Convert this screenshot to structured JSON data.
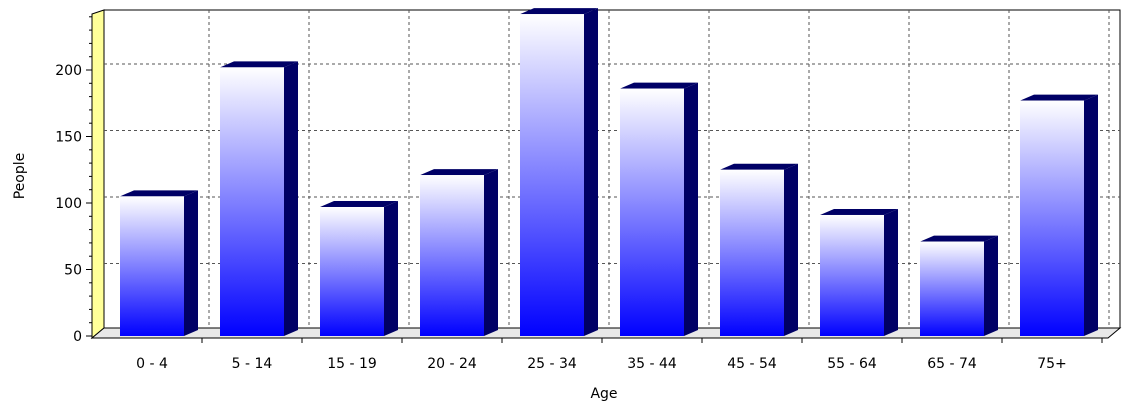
{
  "chart_data": {
    "type": "bar",
    "title": "",
    "xlabel": "Age",
    "ylabel": "People",
    "categories": [
      "0 - 4",
      "5 - 14",
      "15 - 19",
      "20 - 24",
      "25 - 34",
      "35 - 44",
      "45 - 54",
      "55 - 64",
      "65 - 74",
      "75+"
    ],
    "values": [
      105,
      202,
      97,
      121,
      242,
      186,
      125,
      91,
      71,
      177
    ],
    "ylim": [
      0,
      250
    ],
    "yticks": [
      0,
      50,
      100,
      150,
      200
    ],
    "grid": true,
    "style": "3d",
    "colors": {
      "bar_top": "#ffffff",
      "bar_bottom": "#0000ff",
      "bar_side": "#000066",
      "wall_left": "#ffff99",
      "grid": "#555555"
    }
  }
}
